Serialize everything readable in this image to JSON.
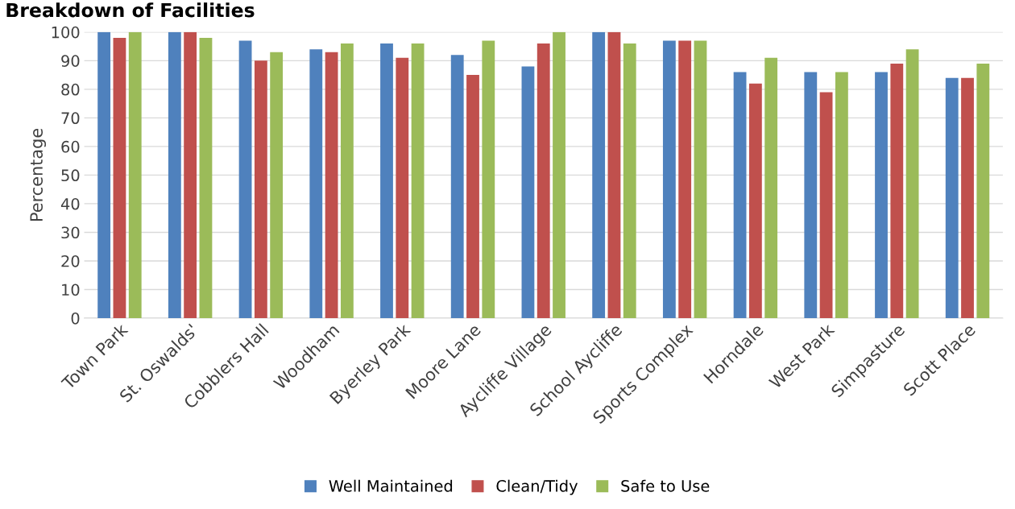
{
  "chart_data": {
    "type": "bar",
    "title": "Breakdown of Facilities",
    "ylabel": "Percentage",
    "categories": [
      "Town Park",
      "St. Oswalds'",
      "Cobblers Hall",
      "Woodham",
      "Byerley Park",
      "Moore Lane",
      "Aycliffe Village",
      "School Aycliffe",
      "Sports Complex",
      "Horndale",
      "West Park",
      "Simpasture",
      "Scott Place"
    ],
    "series": [
      {
        "name": "Well Maintained",
        "color": "#4f81bd",
        "values": [
          100,
          100,
          97,
          94,
          96,
          92,
          88,
          100,
          97,
          86,
          86,
          86,
          84
        ]
      },
      {
        "name": "Clean/Tidy",
        "color": "#c0504d",
        "values": [
          98,
          100,
          90,
          93,
          91,
          85,
          96,
          100,
          97,
          82,
          79,
          89,
          84
        ]
      },
      {
        "name": "Safe to Use",
        "color": "#9bbb59",
        "values": [
          100,
          98,
          93,
          96,
          96,
          97,
          100,
          96,
          97,
          91,
          86,
          94,
          89
        ]
      }
    ],
    "ylim": [
      0,
      100
    ],
    "yticks": [
      0,
      10,
      20,
      30,
      40,
      50,
      60,
      70,
      80,
      90,
      100
    ],
    "grid": "y",
    "legend": "bottom"
  }
}
